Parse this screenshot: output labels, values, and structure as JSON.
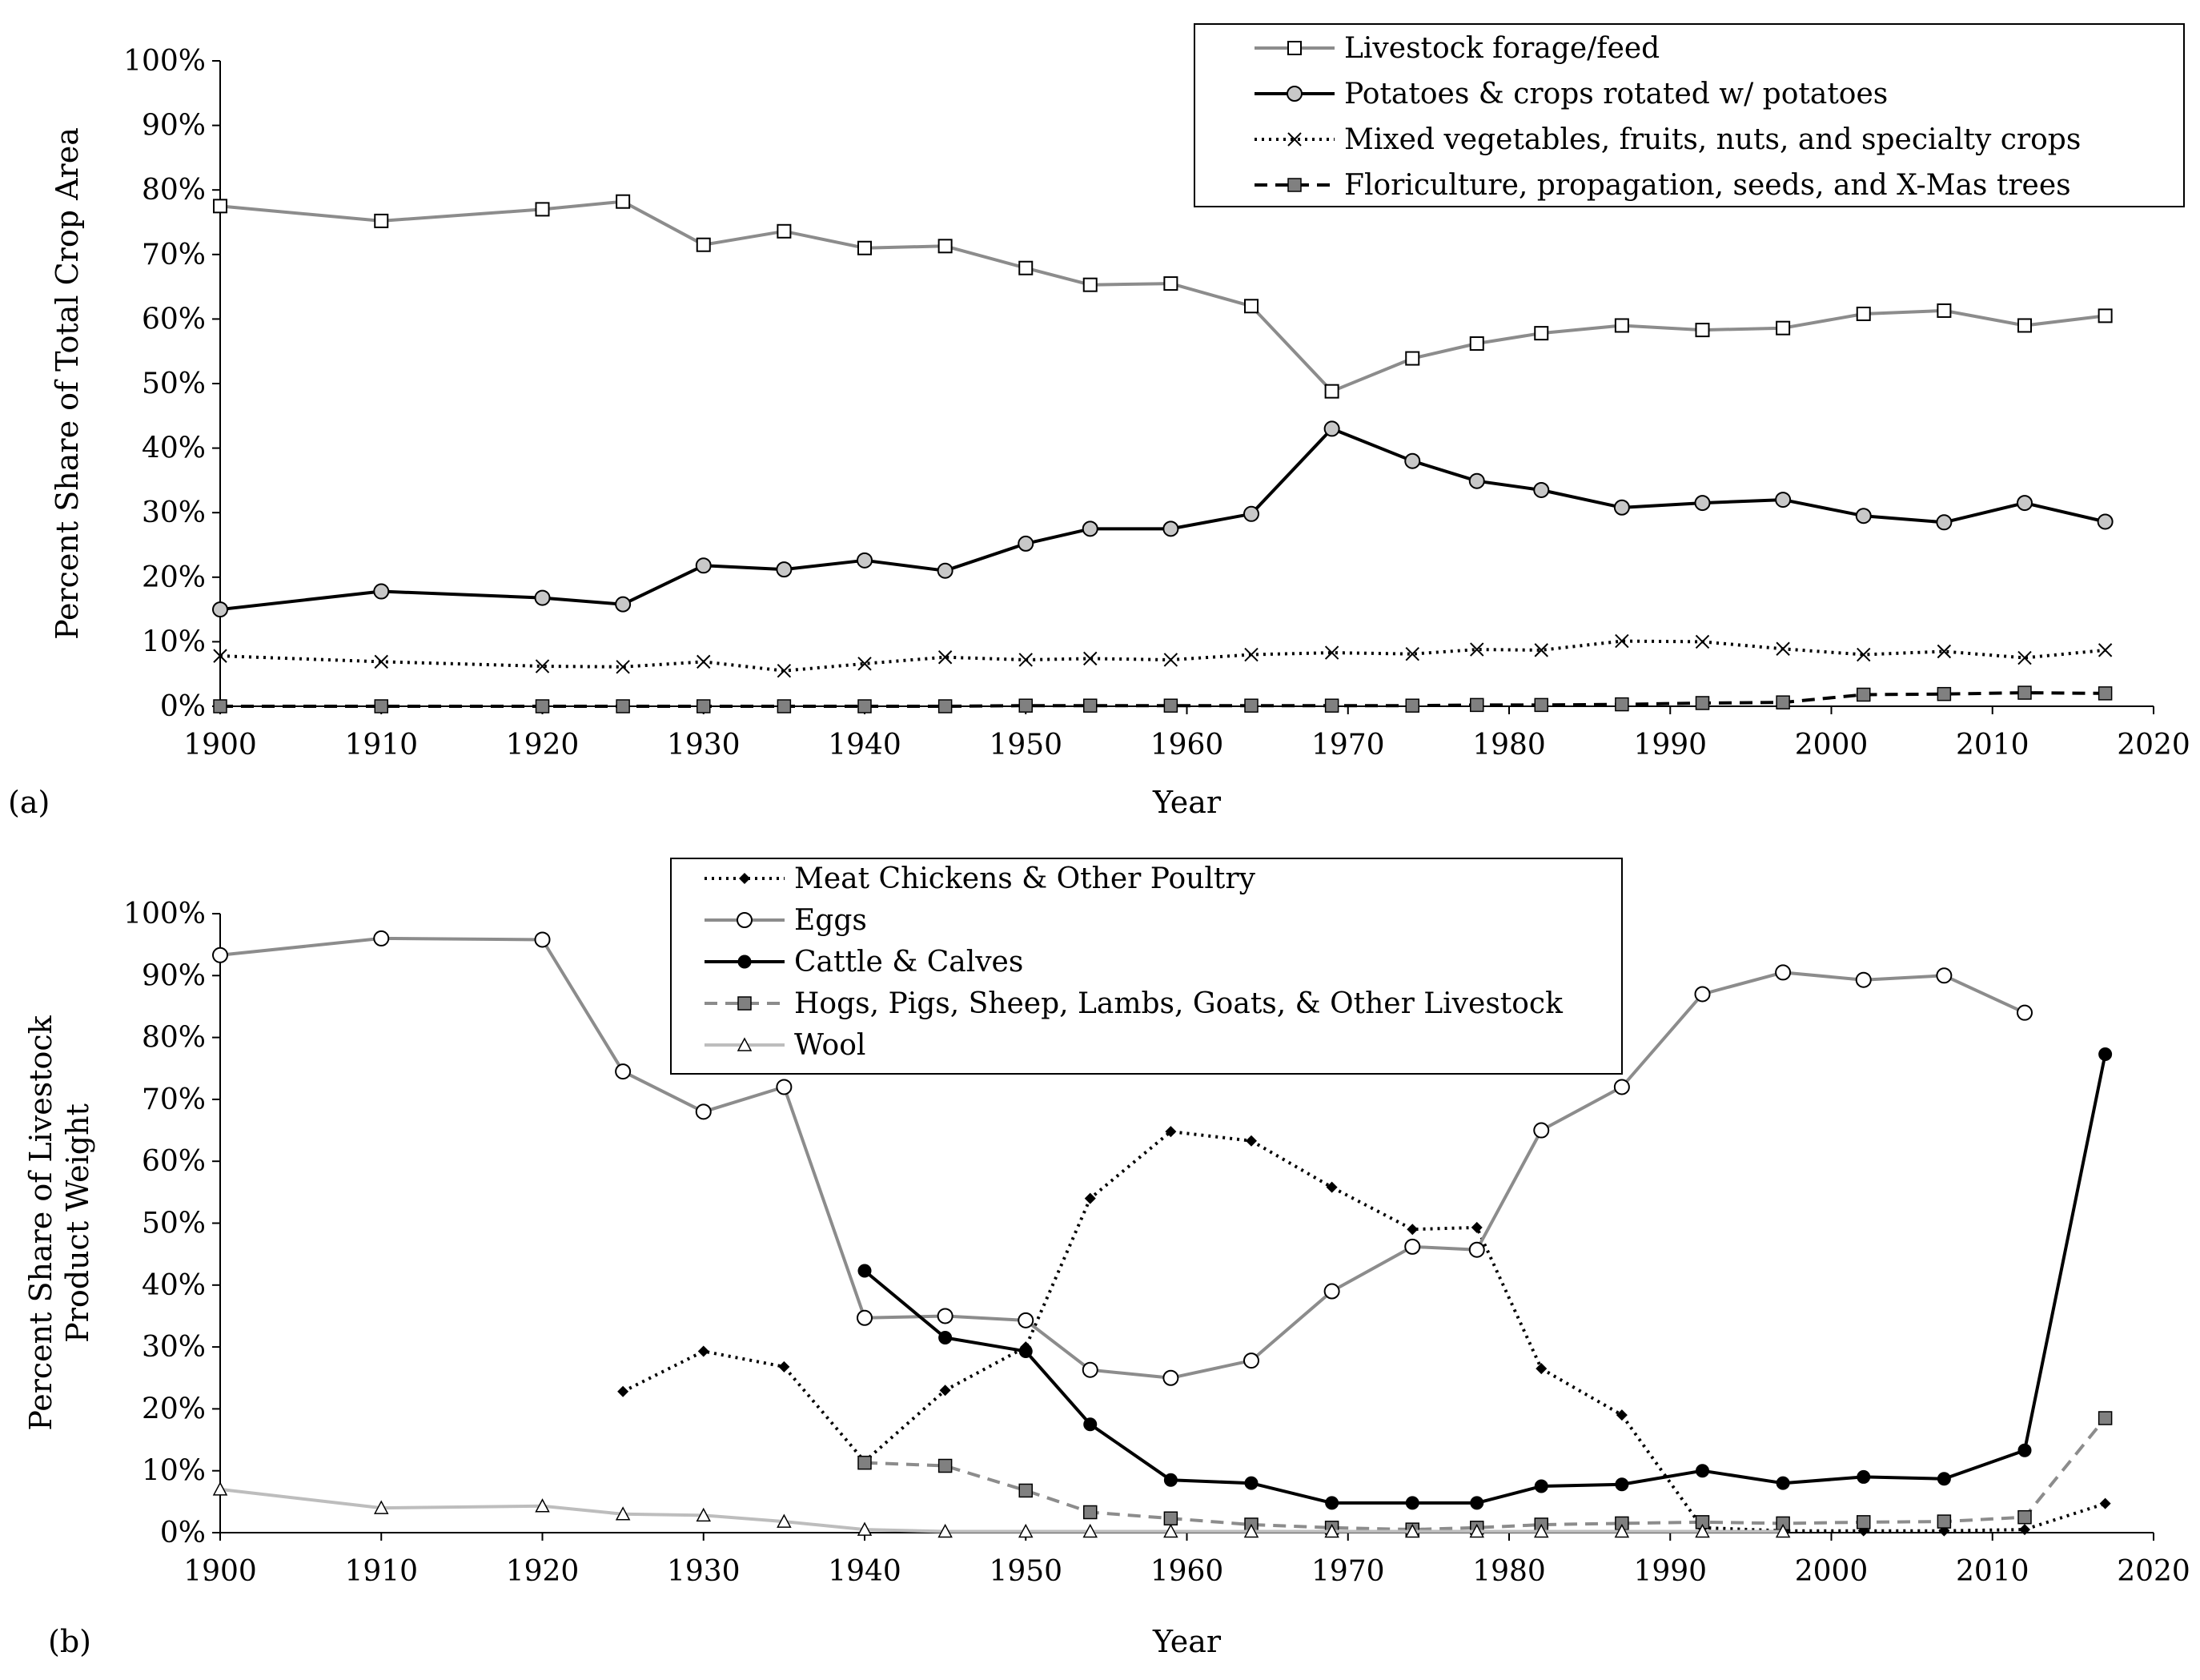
{
  "chart_data": [
    {
      "panel_label": "(a)",
      "type": "line",
      "title": "",
      "xlabel": "Year",
      "ylabel": "Percent  Share of Total Crop Area",
      "xlim": [
        1900,
        2020
      ],
      "ylim": [
        0,
        100
      ],
      "x_ticks": [
        1900,
        1910,
        1920,
        1930,
        1940,
        1950,
        1960,
        1970,
        1980,
        1990,
        2000,
        2010,
        2020
      ],
      "y_ticks": [
        0,
        10,
        20,
        30,
        40,
        50,
        60,
        70,
        80,
        90,
        100
      ],
      "y_tick_labels": [
        "0%",
        "10%",
        "20%",
        "30%",
        "40%",
        "50%",
        "60%",
        "70%",
        "80%",
        "90%",
        "100%"
      ],
      "grid": false,
      "legend_position": "top-right",
      "x": [
        1900,
        1910,
        1920,
        1925,
        1930,
        1935,
        1940,
        1945,
        1950,
        1954,
        1959,
        1964,
        1969,
        1974,
        1978,
        1982,
        1987,
        1992,
        1997,
        2002,
        2007,
        2012,
        2017
      ],
      "series": [
        {
          "name": "Livestock forage/feed",
          "color": "#8c8c8c",
          "dash": "solid",
          "marker": "open-square",
          "values": [
            77.5,
            75.2,
            77.0,
            78.2,
            71.5,
            73.6,
            71.0,
            71.3,
            67.9,
            65.3,
            65.5,
            62.0,
            48.8,
            53.9,
            56.2,
            57.8,
            59.0,
            58.3,
            58.6,
            60.8,
            61.3,
            59.0,
            60.5
          ]
        },
        {
          "name": "Potatoes & crops rotated w/ potatoes",
          "color": "#000000",
          "dash": "solid",
          "marker": "grey-circle",
          "values": [
            15.0,
            17.8,
            16.8,
            15.8,
            21.8,
            21.2,
            22.6,
            21.0,
            25.2,
            27.5,
            27.5,
            29.8,
            43.0,
            38.0,
            34.9,
            33.5,
            30.8,
            31.5,
            32.0,
            29.5,
            28.5,
            31.5,
            28.6
          ]
        },
        {
          "name": "Mixed vegetables, fruits, nuts, and specialty crops",
          "color": "#000000",
          "dash": "dotted",
          "marker": "x",
          "values": [
            7.8,
            6.9,
            6.2,
            6.1,
            6.9,
            5.5,
            6.6,
            7.6,
            7.2,
            7.4,
            7.2,
            8.0,
            8.3,
            8.1,
            8.8,
            8.7,
            10.1,
            10.0,
            8.9,
            8.0,
            8.5,
            7.5,
            8.7
          ]
        },
        {
          "name": "Floriculture, propagation, seeds, and X-Mas trees",
          "color": "#000000",
          "dash": "dashed",
          "marker": "grey-square",
          "values": [
            0,
            0,
            0,
            0,
            0,
            0,
            0,
            0,
            0.1,
            0.1,
            0.1,
            0.1,
            0.1,
            0.1,
            0.2,
            0.2,
            0.3,
            0.5,
            0.6,
            1.8,
            1.9,
            2.1,
            2.0
          ]
        }
      ]
    },
    {
      "panel_label": "(b)",
      "type": "line",
      "title": "",
      "xlabel": "Year",
      "ylabel": [
        "Percent Share of Livestock",
        "Product Weight"
      ],
      "xlim": [
        1900,
        2020
      ],
      "ylim": [
        0,
        100
      ],
      "x_ticks": [
        1900,
        1910,
        1920,
        1930,
        1940,
        1950,
        1960,
        1970,
        1980,
        1990,
        2000,
        2010,
        2020
      ],
      "y_ticks": [
        0,
        10,
        20,
        30,
        40,
        50,
        60,
        70,
        80,
        90,
        100
      ],
      "y_tick_labels": [
        "0%",
        "10%",
        "20%",
        "30%",
        "40%",
        "50%",
        "60%",
        "70%",
        "80%",
        "90%",
        "100%"
      ],
      "grid": false,
      "legend_position": "top-center",
      "series": [
        {
          "name": "Meat Chickens & Other Poultry",
          "color": "#000000",
          "dash": "dotted",
          "marker": "diamond",
          "x": [
            1925,
            1930,
            1935,
            1940,
            1945,
            1950,
            1954,
            1959,
            1964,
            1969,
            1974,
            1978,
            1982,
            1987,
            1992,
            1997,
            2002,
            2007,
            2012,
            2017
          ],
          "values": [
            22.8,
            29.3,
            26.8,
            11.5,
            23.0,
            30.0,
            54.0,
            64.8,
            63.3,
            55.8,
            49.0,
            49.3,
            26.5,
            19.0,
            0.8,
            0.3,
            0.3,
            0.3,
            0.5,
            4.7
          ]
        },
        {
          "name": "Eggs",
          "color": "#8c8c8c",
          "dash": "solid",
          "marker": "open-circle",
          "x": [
            1900,
            1910,
            1920,
            1925,
            1930,
            1935,
            1940,
            1945,
            1950,
            1954,
            1959,
            1964,
            1969,
            1974,
            1978,
            1982,
            1987,
            1992,
            1997,
            2002,
            2007,
            2012
          ],
          "values": [
            93.3,
            96.0,
            95.8,
            74.5,
            68.0,
            72.0,
            34.7,
            35.0,
            34.3,
            26.3,
            25.0,
            27.8,
            39.0,
            46.2,
            45.7,
            65.0,
            72.0,
            87.0,
            90.5,
            89.3,
            90.0,
            84.0
          ]
        },
        {
          "name": "Cattle & Calves",
          "color": "#000000",
          "dash": "solid",
          "marker": "black-circle",
          "x": [
            1940,
            1945,
            1950,
            1954,
            1959,
            1964,
            1969,
            1974,
            1978,
            1982,
            1987,
            1992,
            1997,
            2002,
            2007,
            2012,
            2017
          ],
          "values": [
            42.3,
            31.5,
            29.3,
            17.5,
            8.5,
            8.0,
            4.8,
            4.8,
            4.8,
            7.5,
            7.8,
            10.0,
            8.0,
            9.0,
            8.7,
            13.3,
            77.3
          ]
        },
        {
          "name": "Hogs, Pigs, Sheep, Lambs, Goats, & Other Livestock",
          "color": "#8c8c8c",
          "dash": "dashed",
          "marker": "grey-square",
          "x": [
            1940,
            1945,
            1950,
            1954,
            1959,
            1964,
            1969,
            1974,
            1978,
            1982,
            1987,
            1992,
            1997,
            2002,
            2007,
            2012,
            2017
          ],
          "values": [
            11.3,
            10.8,
            6.8,
            3.3,
            2.3,
            1.3,
            0.8,
            0.5,
            0.8,
            1.3,
            1.5,
            1.7,
            1.5,
            1.7,
            1.8,
            2.5,
            18.5
          ]
        },
        {
          "name": "Wool",
          "color": "#bdbdbd",
          "dash": "solid",
          "marker": "open-triangle",
          "x": [
            1900,
            1910,
            1920,
            1925,
            1930,
            1935,
            1940,
            1945,
            1950,
            1954,
            1959,
            1964,
            1969,
            1974,
            1978,
            1982,
            1987,
            1992,
            1997
          ],
          "values": [
            7.0,
            4.0,
            4.3,
            3.0,
            2.8,
            1.8,
            0.5,
            0.2,
            0.2,
            0.2,
            0.2,
            0.2,
            0.2,
            0.2,
            0.2,
            0.2,
            0.2,
            0.2,
            0.2
          ]
        }
      ]
    }
  ]
}
